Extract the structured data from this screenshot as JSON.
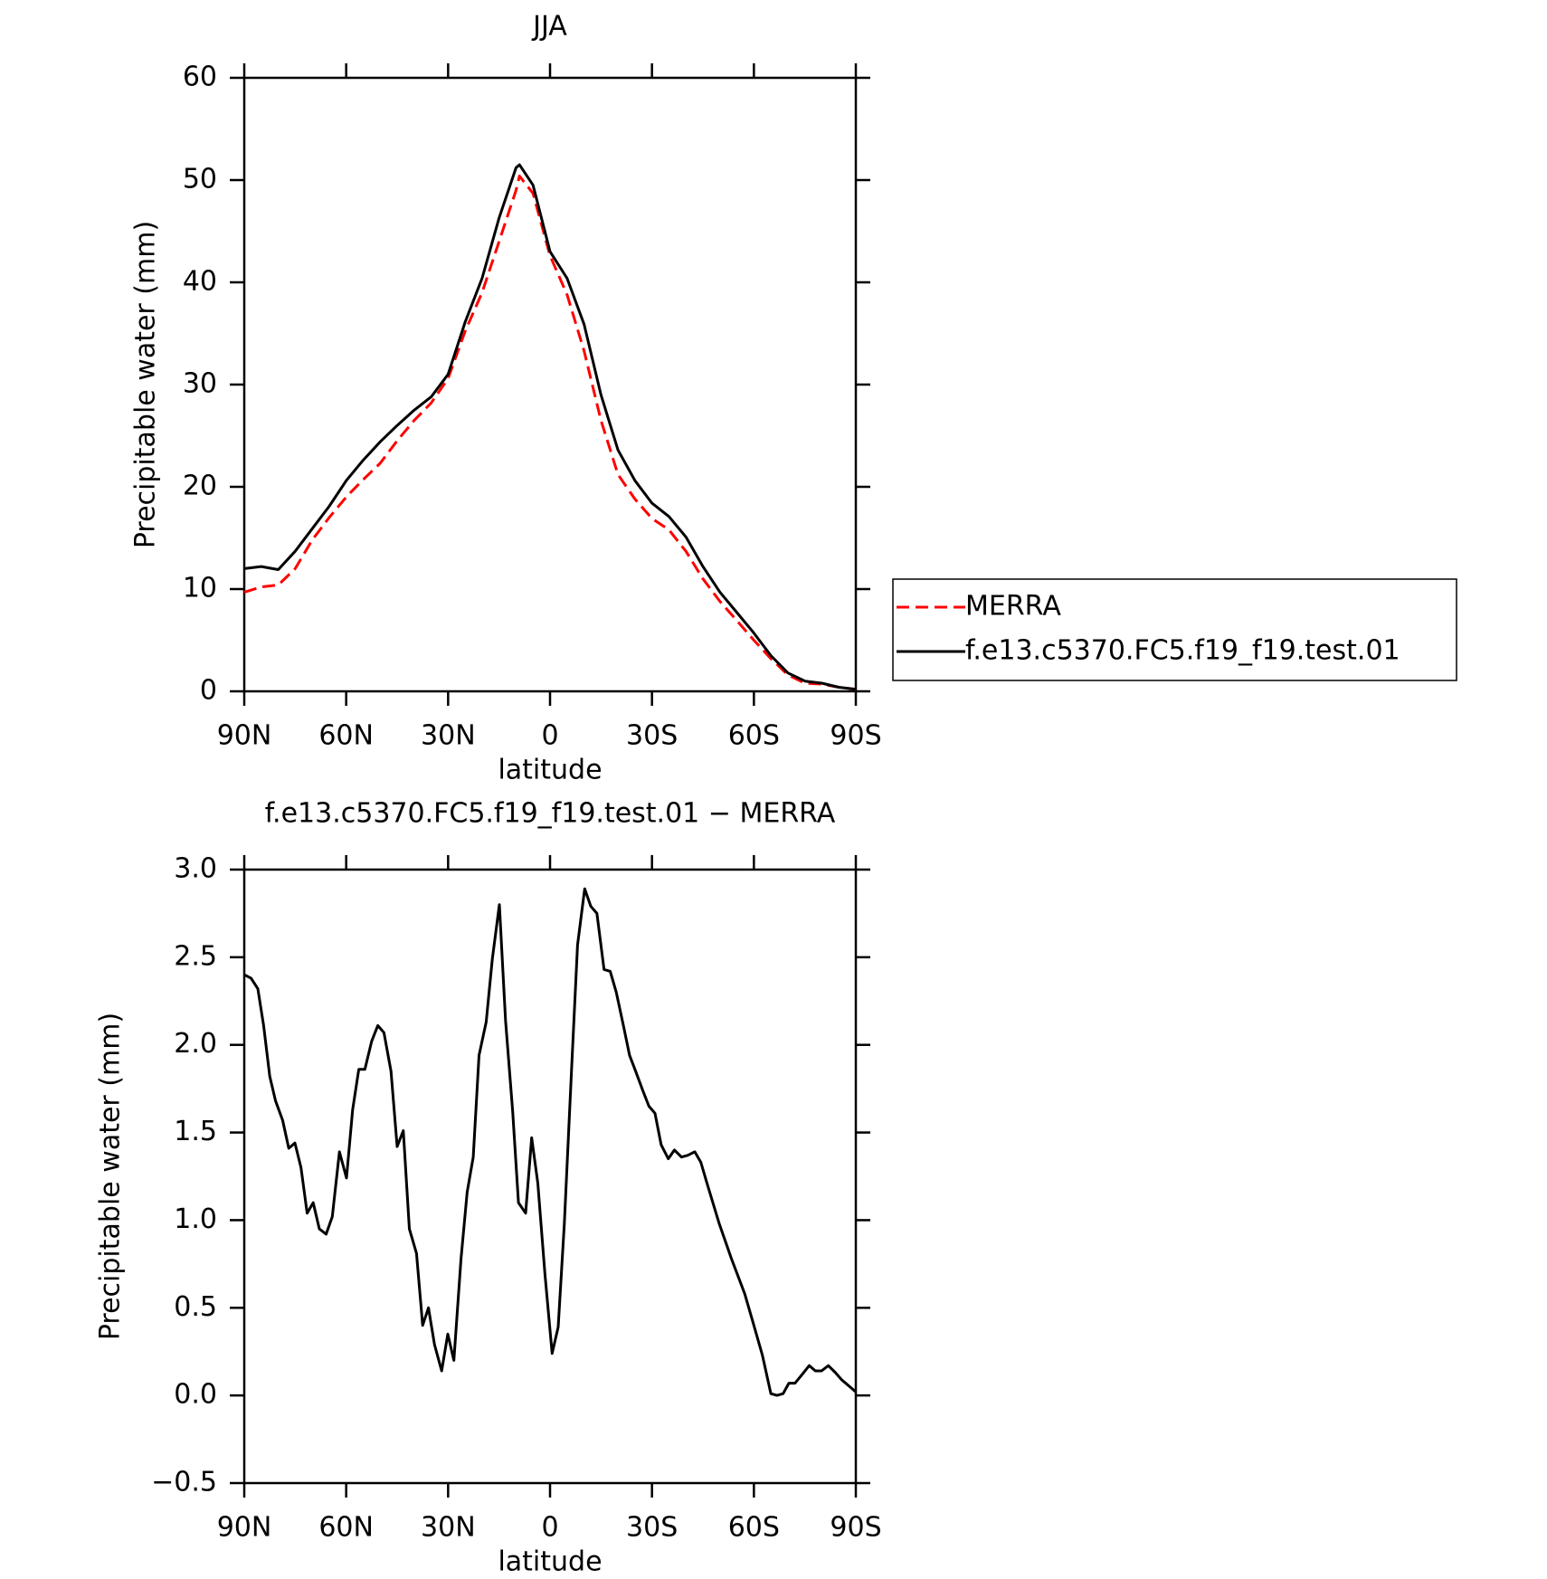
{
  "chart_data": [
    {
      "type": "line",
      "title": "JJA",
      "xlabel": "latitude",
      "ylabel": "Precipitable water (mm)",
      "x": [
        90,
        85,
        80,
        75,
        70,
        65,
        60,
        55,
        50,
        45,
        40,
        35,
        30,
        25,
        20,
        15,
        10,
        9,
        5,
        0,
        -5,
        -10,
        -15,
        -20,
        -25,
        -30,
        -35,
        -40,
        -45,
        -50,
        -55,
        -60,
        -65,
        -70,
        -75,
        -80,
        -85,
        -90
      ],
      "series": [
        {
          "name": "MERRA",
          "color": "#ff0000",
          "line_style": "dashed",
          "values": [
            9.7,
            10.2,
            10.4,
            12.0,
            14.8,
            17.0,
            19.0,
            20.7,
            22.3,
            24.5,
            26.5,
            28.2,
            30.6,
            35.2,
            39.0,
            44.0,
            49.0,
            50.4,
            48.7,
            42.6,
            38.8,
            33.3,
            26.5,
            21.2,
            18.8,
            16.9,
            15.8,
            13.7,
            11.0,
            8.8,
            6.9,
            5.0,
            3.2,
            1.6,
            0.8,
            0.7,
            0.4,
            0.2
          ]
        },
        {
          "name": "f.e13.c5370.FC5.f19_f19.test.01",
          "color": "#000000",
          "line_style": "solid",
          "values": [
            12.0,
            12.2,
            11.9,
            13.7,
            15.9,
            18.1,
            20.6,
            22.6,
            24.4,
            26.0,
            27.5,
            28.8,
            31.0,
            36.1,
            40.4,
            46.3,
            51.2,
            51.5,
            49.5,
            43.0,
            40.4,
            35.9,
            29.0,
            23.6,
            20.6,
            18.4,
            17.1,
            15.1,
            12.2,
            9.7,
            7.7,
            5.7,
            3.5,
            1.8,
            1.0,
            0.8,
            0.4,
            0.2
          ]
        }
      ],
      "xlim": [
        90,
        -90
      ],
      "xticks": [
        {
          "value": 90,
          "label": "90N"
        },
        {
          "value": 60,
          "label": "60N"
        },
        {
          "value": 30,
          "label": "30N"
        },
        0,
        {
          "value": -30,
          "label": "30S"
        },
        {
          "value": -60,
          "label": "60S"
        },
        {
          "value": -90,
          "label": "90S"
        }
      ],
      "ylim": [
        0,
        60
      ],
      "yticks": [
        0,
        10,
        20,
        30,
        40,
        50,
        60
      ],
      "legend": "right"
    },
    {
      "type": "line",
      "title": "f.e13.c5370.FC5.f19_f19.test.01 − MERRA",
      "xlabel": "latitude",
      "ylabel": "Precipitable water (mm)",
      "x": [
        90,
        88,
        86,
        84.3,
        82.5,
        80.8,
        78.7,
        76.9,
        75.1,
        73.3,
        71.5,
        69.7,
        67.9,
        65.9,
        64.1,
        62,
        59.9,
        58.1,
        56.3,
        54.5,
        52.5,
        50.7,
        48.9,
        46.8,
        45,
        43.2,
        41.4,
        39.3,
        37.5,
        35.8,
        34,
        31.9,
        30.1,
        28.3,
        26.2,
        24.4,
        22.6,
        20.9,
        18.8,
        17,
        14.9,
        13.1,
        11,
        9.3,
        7.2,
        5.4,
        3.6,
        1.5,
        -0.6,
        -2.4,
        -4.2,
        -6.3,
        -8.1,
        -10.2,
        -12,
        -13.8,
        -15.9,
        -17.7,
        -19.5,
        -21.6,
        -23.4,
        -25.2,
        -27.3,
        -29.1,
        -30.9,
        -32.7,
        -34.8,
        -36.6,
        -38.7,
        -40.5,
        -42.6,
        -44.4,
        -46.2,
        -49.8,
        -53.4,
        -57.3,
        -60,
        -62.5,
        -65,
        -66.8,
        -68.6,
        -70.3,
        -72.1,
        -74.2,
        -76.3,
        -78.1,
        -79.9,
        -81.9,
        -84,
        -85.8,
        -87.6,
        -90
      ],
      "values": [
        2.4,
        2.38,
        2.32,
        2.11,
        1.82,
        1.68,
        1.57,
        1.41,
        1.44,
        1.3,
        1.04,
        1.1,
        0.95,
        0.92,
        1.02,
        1.39,
        1.24,
        1.63,
        1.86,
        1.86,
        2.02,
        2.11,
        2.07,
        1.85,
        1.42,
        1.51,
        0.95,
        0.81,
        0.4,
        0.5,
        0.29,
        0.14,
        0.35,
        0.2,
        0.78,
        1.16,
        1.36,
        1.94,
        2.13,
        2.49,
        2.8,
        2.14,
        1.62,
        1.1,
        1.04,
        1.47,
        1.21,
        0.69,
        0.24,
        0.39,
        0.98,
        1.85,
        2.57,
        2.89,
        2.79,
        2.75,
        2.43,
        2.42,
        2.3,
        2.11,
        1.94,
        1.85,
        1.74,
        1.65,
        1.61,
        1.43,
        1.35,
        1.4,
        1.36,
        1.37,
        1.39,
        1.33,
        1.21,
        0.98,
        0.78,
        0.58,
        0.4,
        0.23,
        0.01,
        0.0,
        0.01,
        0.07,
        0.07,
        0.12,
        0.17,
        0.14,
        0.14,
        0.17,
        0.13,
        0.09,
        0.06,
        0.02
      ],
      "color": "#000000",
      "line_style": "solid",
      "xlim": [
        90,
        -90
      ],
      "xticks": [
        {
          "value": 90,
          "label": "90N"
        },
        {
          "value": 60,
          "label": "60N"
        },
        {
          "value": 30,
          "label": "30N"
        },
        0,
        {
          "value": -30,
          "label": "30S"
        },
        {
          "value": -60,
          "label": "60S"
        },
        {
          "value": -90,
          "label": "90S"
        }
      ],
      "ylim": [
        -0.5,
        3.0
      ],
      "yticks": [
        {
          "value": -0.5,
          "label": "−0.5"
        },
        {
          "value": 0,
          "label": "0.0"
        },
        0.5,
        {
          "value": 1,
          "label": "1.0"
        },
        1.5,
        {
          "value": 2,
          "label": "2.0"
        },
        2.5,
        {
          "value": 3,
          "label": "3.0"
        }
      ]
    }
  ]
}
